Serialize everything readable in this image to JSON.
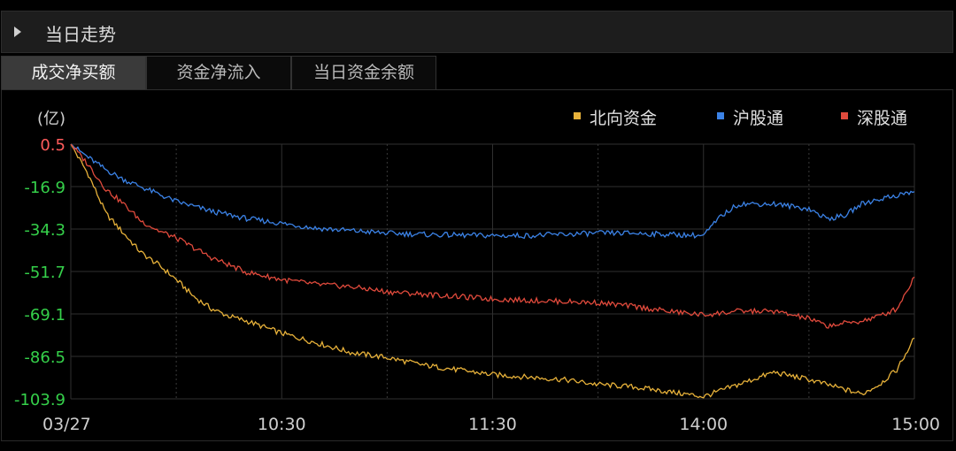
{
  "header": {
    "title": "当日走势",
    "toggle_icon": "triangle-right-icon"
  },
  "tabs": [
    {
      "label": "成交净买额",
      "active": true
    },
    {
      "label": "资金净流入",
      "active": false
    },
    {
      "label": "当日资金余额",
      "active": false
    }
  ],
  "colors": {
    "north": "#e8b23a",
    "shanghai": "#3b82e6",
    "shenzhen": "#e04a3c",
    "first_tick": "#ff5b5b",
    "other_ticks": "#35d04a"
  },
  "chart_data": {
    "type": "line",
    "unit_label": "(亿)",
    "y_ticks": [
      0.5,
      -16.9,
      -34.3,
      -51.7,
      -69.1,
      -86.5,
      -103.9
    ],
    "ylim": [
      -103.9,
      0.5
    ],
    "x_ticks": [
      "03/27",
      "10:30",
      "11:30",
      "14:00",
      "15:00"
    ],
    "grid": true,
    "legend_position": "top-right",
    "series": [
      {
        "name": "北向资金",
        "color": "#e8b23a",
        "points": [
          [
            0,
            0.5
          ],
          [
            5,
            -12
          ],
          [
            10,
            -28
          ],
          [
            15,
            -36
          ],
          [
            20,
            -44
          ],
          [
            25,
            -49
          ],
          [
            30,
            -55
          ],
          [
            35,
            -62
          ],
          [
            40,
            -67
          ],
          [
            45,
            -70
          ],
          [
            50,
            -72
          ],
          [
            60,
            -77
          ],
          [
            70,
            -81
          ],
          [
            80,
            -85
          ],
          [
            90,
            -87
          ],
          [
            100,
            -90
          ],
          [
            110,
            -92
          ],
          [
            120,
            -94
          ],
          [
            130,
            -95
          ],
          [
            140,
            -96
          ],
          [
            150,
            -98
          ],
          [
            160,
            -99
          ],
          [
            170,
            -101
          ],
          [
            180,
            -103
          ],
          [
            190,
            -98
          ],
          [
            200,
            -93
          ],
          [
            210,
            -96
          ],
          [
            220,
            -100
          ],
          [
            225,
            -102
          ],
          [
            230,
            -98
          ],
          [
            235,
            -92
          ],
          [
            240,
            -79
          ]
        ]
      },
      {
        "name": "沪股通",
        "color": "#3b82e6",
        "points": [
          [
            0,
            0.5
          ],
          [
            5,
            -5
          ],
          [
            10,
            -10
          ],
          [
            15,
            -14
          ],
          [
            20,
            -17
          ],
          [
            25,
            -20
          ],
          [
            30,
            -23
          ],
          [
            35,
            -25
          ],
          [
            40,
            -27
          ],
          [
            50,
            -30
          ],
          [
            60,
            -32
          ],
          [
            70,
            -34
          ],
          [
            80,
            -35
          ],
          [
            90,
            -36
          ],
          [
            100,
            -36.5
          ],
          [
            110,
            -36.8
          ],
          [
            120,
            -37
          ],
          [
            130,
            -37
          ],
          [
            140,
            -36.5
          ],
          [
            150,
            -36
          ],
          [
            160,
            -36
          ],
          [
            170,
            -36.5
          ],
          [
            180,
            -37
          ],
          [
            185,
            -29
          ],
          [
            190,
            -24
          ],
          [
            200,
            -24
          ],
          [
            210,
            -26
          ],
          [
            215,
            -30
          ],
          [
            220,
            -29
          ],
          [
            225,
            -24
          ],
          [
            230,
            -22
          ],
          [
            240,
            -19
          ]
        ]
      },
      {
        "name": "深股通",
        "color": "#e04a3c",
        "points": [
          [
            0,
            0.5
          ],
          [
            5,
            -8
          ],
          [
            10,
            -18
          ],
          [
            15,
            -24
          ],
          [
            20,
            -31
          ],
          [
            25,
            -35
          ],
          [
            30,
            -38
          ],
          [
            35,
            -42
          ],
          [
            40,
            -46
          ],
          [
            45,
            -49
          ],
          [
            50,
            -52
          ],
          [
            60,
            -55
          ],
          [
            70,
            -57
          ],
          [
            80,
            -58
          ],
          [
            90,
            -60
          ],
          [
            100,
            -61
          ],
          [
            110,
            -62
          ],
          [
            120,
            -63
          ],
          [
            130,
            -63.5
          ],
          [
            140,
            -64
          ],
          [
            150,
            -64.5
          ],
          [
            160,
            -66
          ],
          [
            170,
            -68
          ],
          [
            180,
            -69.5
          ],
          [
            190,
            -68
          ],
          [
            200,
            -68
          ],
          [
            210,
            -71
          ],
          [
            215,
            -74
          ],
          [
            220,
            -73
          ],
          [
            225,
            -72
          ],
          [
            230,
            -70
          ],
          [
            235,
            -67
          ],
          [
            240,
            -54
          ]
        ]
      }
    ]
  }
}
